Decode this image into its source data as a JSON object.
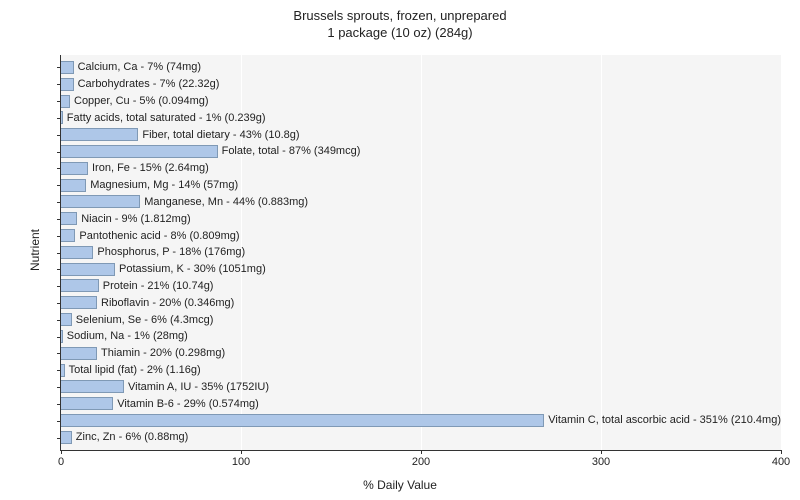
{
  "chart": {
    "type": "bar-horizontal",
    "title_line1": "Brussels sprouts, frozen, unprepared",
    "title_line2": "1 package (10 oz) (284g)",
    "title_fontsize": 13,
    "xlabel": "% Daily Value",
    "ylabel": "Nutrient",
    "label_fontsize": 12,
    "background_color": "#ffffff",
    "plot_background_color": "#f5f5f5",
    "grid_color": "#ffffff",
    "bar_color": "#aec7e8",
    "bar_border_color": "#7f99b5",
    "text_color": "#222222",
    "bar_label_fontsize": 11,
    "tick_fontsize": 11,
    "xlim": [
      0,
      400
    ],
    "xticks": [
      0,
      100,
      200,
      300,
      400
    ],
    "nutrients": [
      {
        "label": "Calcium, Ca - 7% (74mg)",
        "value": 7
      },
      {
        "label": "Carbohydrates - 7% (22.32g)",
        "value": 7
      },
      {
        "label": "Copper, Cu - 5% (0.094mg)",
        "value": 5
      },
      {
        "label": "Fatty acids, total saturated - 1% (0.239g)",
        "value": 1
      },
      {
        "label": "Fiber, total dietary - 43% (10.8g)",
        "value": 43
      },
      {
        "label": "Folate, total - 87% (349mcg)",
        "value": 87
      },
      {
        "label": "Iron, Fe - 15% (2.64mg)",
        "value": 15
      },
      {
        "label": "Magnesium, Mg - 14% (57mg)",
        "value": 14
      },
      {
        "label": "Manganese, Mn - 44% (0.883mg)",
        "value": 44
      },
      {
        "label": "Niacin - 9% (1.812mg)",
        "value": 9
      },
      {
        "label": "Pantothenic acid - 8% (0.809mg)",
        "value": 8
      },
      {
        "label": "Phosphorus, P - 18% (176mg)",
        "value": 18
      },
      {
        "label": "Potassium, K - 30% (1051mg)",
        "value": 30
      },
      {
        "label": "Protein - 21% (10.74g)",
        "value": 21
      },
      {
        "label": "Riboflavin - 20% (0.346mg)",
        "value": 20
      },
      {
        "label": "Selenium, Se - 6% (4.3mcg)",
        "value": 6
      },
      {
        "label": "Sodium, Na - 1% (28mg)",
        "value": 1
      },
      {
        "label": "Thiamin - 20% (0.298mg)",
        "value": 20
      },
      {
        "label": "Total lipid (fat) - 2% (1.16g)",
        "value": 2
      },
      {
        "label": "Vitamin A, IU - 35% (1752IU)",
        "value": 35
      },
      {
        "label": "Vitamin B-6 - 29% (0.574mg)",
        "value": 29
      },
      {
        "label": "Vitamin C, total ascorbic acid - 351% (210.4mg)",
        "value": 351
      },
      {
        "label": "Zinc, Zn - 6% (0.88mg)",
        "value": 6
      }
    ]
  }
}
